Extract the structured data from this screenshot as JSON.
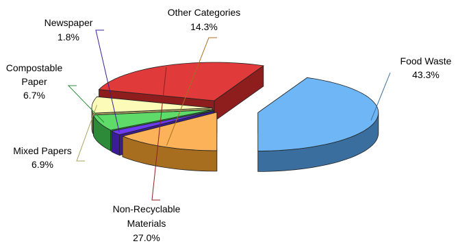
{
  "chart_data": {
    "type": "pie",
    "style": "3d-exploded",
    "slices": [
      {
        "key": "food",
        "label": "Food Waste",
        "value": 43.3,
        "display": "43.3%",
        "color": "#6FB6F6",
        "side_color": "#3A6E9E"
      },
      {
        "key": "nonrec",
        "label": "Non-Recyclable Materials",
        "value": 27.0,
        "display": "27.0%",
        "color": "#E03A3A",
        "side_color": "#8E1E1E"
      },
      {
        "key": "mixed",
        "label": "Mixed Papers",
        "value": 6.9,
        "display": "6.9%",
        "color": "#FDFBB8",
        "side_color": "#A7A160"
      },
      {
        "key": "comp",
        "label": "Compostable Paper",
        "value": 6.7,
        "display": "6.7%",
        "color": "#5FDB6A",
        "side_color": "#2C8A38"
      },
      {
        "key": "news",
        "label": "Newspaper",
        "value": 1.8,
        "display": "1.8%",
        "color": "#6E3CF0",
        "side_color": "#3C1C96"
      },
      {
        "key": "other",
        "label": "Other Categories",
        "value": 14.3,
        "display": "14.3%",
        "color": "#FBB259",
        "side_color": "#A86E20"
      }
    ],
    "legend": "none",
    "data_labels": "outside with leader lines"
  }
}
